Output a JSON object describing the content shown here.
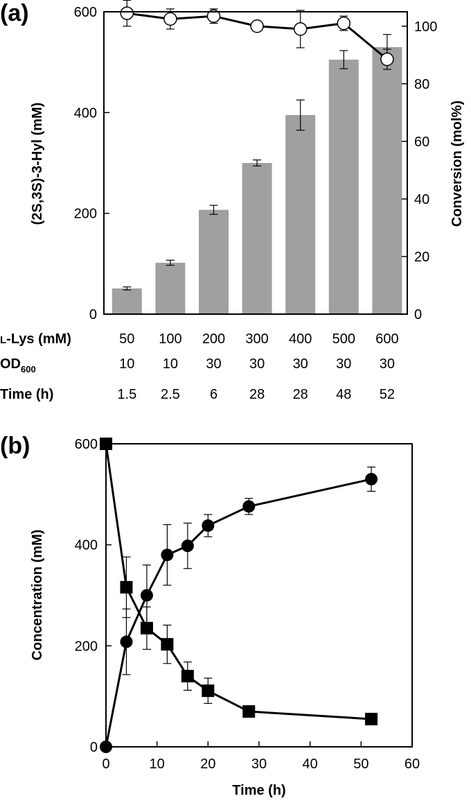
{
  "chart_data": [
    {
      "panel_label": "(a)",
      "type": "bar",
      "categories": [
        "50",
        "100",
        "200",
        "300",
        "400",
        "500",
        "600"
      ],
      "series": [
        {
          "name": "(2S,3S)-3-Hyl (mM)",
          "axis": "left",
          "type": "bar",
          "values": [
            51,
            102,
            207,
            300,
            395,
            505,
            530
          ],
          "errors": [
            3,
            5,
            9,
            6,
            30,
            18,
            25
          ]
        },
        {
          "name": "Conversion (mol%)",
          "axis": "right",
          "type": "line",
          "marker": "open-circle",
          "values": [
            104.5,
            102.5,
            103.5,
            100,
            99,
            101,
            88.5
          ],
          "errors": [
            4.5,
            3.5,
            2.5,
            0.5,
            6.5,
            2.5,
            3.5
          ]
        }
      ],
      "ylabel_left": "(2S,3S)-3-Hyl (mM)",
      "ylabel_right": "Conversion (mol%)",
      "ylim_left": [
        0,
        600
      ],
      "ylim_right": [
        0,
        105
      ],
      "yticks_left": [
        "0",
        "200",
        "400",
        "600"
      ],
      "yticks_right": [
        "0",
        "20",
        "40",
        "60",
        "80",
        "100"
      ],
      "table_rows": [
        {
          "label": "L-Lys (mM)",
          "values": [
            "50",
            "100",
            "200",
            "300",
            "400",
            "500",
            "600"
          ]
        },
        {
          "label": "OD",
          "sub": "600",
          "values": [
            "10",
            "10",
            "30",
            "30",
            "30",
            "30",
            "30"
          ]
        },
        {
          "label": "Time (h)",
          "values": [
            "1.5",
            "2.5",
            "6",
            "28",
            "28",
            "48",
            "52"
          ]
        }
      ]
    },
    {
      "panel_label": "(b)",
      "type": "line",
      "xlabel": "Time (h)",
      "ylabel": "Concentration (mM)",
      "xlim": [
        0,
        60
      ],
      "ylim": [
        0,
        600
      ],
      "xticks": [
        "0",
        "10",
        "20",
        "30",
        "40",
        "50",
        "60"
      ],
      "yticks": [
        "0",
        "200",
        "400",
        "600"
      ],
      "series": [
        {
          "name": "(2S,3S)-3-Hyl",
          "marker": "filled-circle",
          "x": [
            0,
            4,
            8,
            12,
            16,
            20,
            28,
            52
          ],
          "y": [
            0,
            208,
            300,
            380,
            398,
            438,
            476,
            530
          ],
          "errors": [
            0,
            65,
            60,
            60,
            45,
            22,
            16,
            24
          ]
        },
        {
          "name": "L-Lys",
          "marker": "filled-square",
          "x": [
            0,
            4,
            8,
            12,
            16,
            20,
            28,
            52
          ],
          "y": [
            600,
            316,
            235,
            203,
            140,
            111,
            70,
            55
          ],
          "errors": [
            0,
            60,
            42,
            38,
            28,
            25,
            0,
            0
          ]
        }
      ]
    }
  ]
}
